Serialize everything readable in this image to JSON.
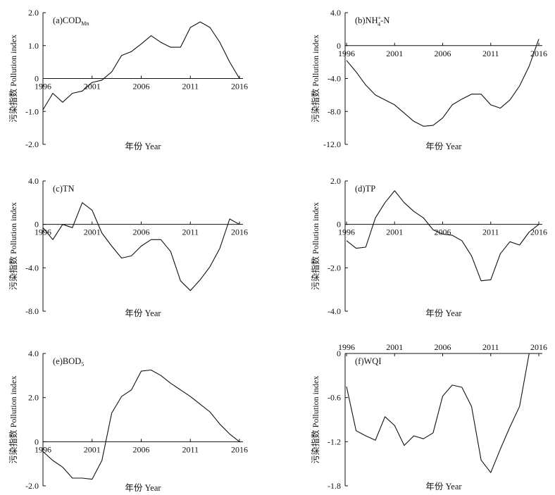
{
  "chart_data": [
    {
      "type": "line",
      "panel_label": "(a)",
      "panel_name": "COD",
      "panel_sub": "Mn",
      "xlabel": "年份 Year",
      "ylabel": "污染指数 Pollution index",
      "xlim": [
        1996,
        2016
      ],
      "ylim": [
        -2.0,
        2.0
      ],
      "yticks": [
        "2.0",
        "1.0",
        "0",
        "-1.0",
        "-2.0"
      ],
      "xticks": [
        "1996",
        "2001",
        "2006",
        "2011",
        "2016"
      ],
      "x": [
        1996,
        1997,
        1998,
        1999,
        2000,
        2001,
        2002,
        2003,
        2004,
        2005,
        2006,
        2007,
        2008,
        2009,
        2010,
        2011,
        2012,
        2013,
        2014,
        2015,
        2016
      ],
      "values": [
        -0.95,
        -0.45,
        -0.72,
        -0.45,
        -0.38,
        -0.12,
        -0.05,
        0.2,
        0.7,
        0.82,
        1.05,
        1.3,
        1.1,
        0.95,
        0.95,
        1.55,
        1.72,
        1.55,
        1.1,
        0.5,
        0.0
      ]
    },
    {
      "type": "line",
      "panel_label": "(b)",
      "panel_name": "NH",
      "panel_sup": "+",
      "panel_sub": "4",
      "panel_suffix": "-N",
      "xlabel": "年份 Year",
      "ylabel": "污染指数 Pollution index",
      "xlim": [
        1996,
        2016
      ],
      "ylim": [
        -12.0,
        4.0
      ],
      "yticks": [
        "4.0",
        "0",
        "-4.0",
        "-8.0",
        "-12.0"
      ],
      "xticks": [
        "1996",
        "2001",
        "2006",
        "2011",
        "2016"
      ],
      "x": [
        1996,
        1997,
        1998,
        1999,
        2000,
        2001,
        2002,
        2003,
        2004,
        2005,
        2006,
        2007,
        2008,
        2009,
        2010,
        2011,
        2012,
        2013,
        2014,
        2015,
        2016
      ],
      "values": [
        -1.8,
        -3.2,
        -4.8,
        -6.0,
        -6.6,
        -7.2,
        -8.2,
        -9.2,
        -9.8,
        -9.7,
        -8.8,
        -7.2,
        -6.5,
        -5.9,
        -5.9,
        -7.2,
        -7.6,
        -6.6,
        -4.9,
        -2.5,
        0.8
      ]
    },
    {
      "type": "line",
      "panel_label": "(c)",
      "panel_name": "TN",
      "xlabel": "年份 Year",
      "ylabel": "污染指数 Pollution index",
      "xlim": [
        1996,
        2016
      ],
      "ylim": [
        -8.0,
        4.0
      ],
      "yticks": [
        "4.0",
        "0",
        "-4.0",
        "-8.0"
      ],
      "xticks": [
        "1996",
        "2001",
        "2006",
        "2011",
        "2016"
      ],
      "x": [
        1996,
        1997,
        1998,
        1999,
        2000,
        2001,
        2002,
        2003,
        2004,
        2005,
        2006,
        2007,
        2008,
        2009,
        2010,
        2011,
        2012,
        2013,
        2014,
        2015,
        2016
      ],
      "values": [
        -0.3,
        -1.4,
        0.0,
        -0.3,
        2.0,
        1.3,
        -0.8,
        -2.0,
        -3.1,
        -2.9,
        -2.0,
        -1.4,
        -1.4,
        -2.5,
        -5.2,
        -6.1,
        -5.1,
        -3.9,
        -2.2,
        0.5,
        0.0
      ]
    },
    {
      "type": "line",
      "panel_label": "(d)",
      "panel_name": "TP",
      "xlabel": "年份 Year",
      "ylabel": "污染指数 Pollution index",
      "xlim": [
        1996,
        2016
      ],
      "ylim": [
        -4.0,
        2.0
      ],
      "yticks": [
        "2.0",
        "0",
        "-2.0",
        "-4.0"
      ],
      "xticks": [
        "1996",
        "2001",
        "2006",
        "2011",
        "2016"
      ],
      "x": [
        1996,
        1997,
        1998,
        1999,
        2000,
        2001,
        2002,
        2003,
        2004,
        2005,
        2006,
        2007,
        2008,
        2009,
        2010,
        2011,
        2012,
        2013,
        2014,
        2015,
        2016
      ],
      "values": [
        -0.75,
        -1.1,
        -1.05,
        0.3,
        1.0,
        1.55,
        1.0,
        0.6,
        0.3,
        -0.25,
        -0.45,
        -0.5,
        -0.75,
        -1.45,
        -2.6,
        -2.55,
        -1.35,
        -0.8,
        -0.95,
        -0.35,
        0.0
      ]
    },
    {
      "type": "line",
      "panel_label": "(e)",
      "panel_name": "BOD",
      "panel_sub": "5",
      "xlabel": "年份 Year",
      "ylabel": "污染指数 Pollution index",
      "xlim": [
        1996,
        2016
      ],
      "ylim": [
        -2.0,
        4.0
      ],
      "yticks": [
        "4.0",
        "2.0",
        "0",
        "-2.0"
      ],
      "xticks": [
        "1996",
        "2001",
        "2006",
        "2011",
        "2016"
      ],
      "x": [
        1996,
        1997,
        1998,
        1999,
        2000,
        2001,
        2002,
        2003,
        2004,
        2005,
        2006,
        2007,
        2008,
        2009,
        2010,
        2011,
        2012,
        2013,
        2014,
        2015,
        2016
      ],
      "values": [
        -0.45,
        -0.85,
        -1.15,
        -1.65,
        -1.65,
        -1.7,
        -0.85,
        1.3,
        2.05,
        2.35,
        3.2,
        3.25,
        3.0,
        2.65,
        2.35,
        2.05,
        1.7,
        1.35,
        0.8,
        0.35,
        0.0
      ]
    },
    {
      "type": "line",
      "panel_label": "(f)",
      "panel_name": "WQI",
      "xlabel": "年份 Year",
      "ylabel": "污染指数 Pollution index",
      "xlim": [
        1996,
        2016
      ],
      "ylim": [
        -1.8,
        0
      ],
      "yticks": [
        "0",
        "-0.6",
        "-1.2",
        "-1.8"
      ],
      "xticks": [
        "1996",
        "2001",
        "2006",
        "2011",
        "2016"
      ],
      "x": [
        1996,
        1997,
        1998,
        1999,
        2000,
        2001,
        2002,
        2003,
        2004,
        2005,
        2006,
        2007,
        2008,
        2009,
        2010,
        2011,
        2012,
        2013,
        2014,
        2015,
        2016
      ],
      "values": [
        -0.45,
        -1.05,
        -1.12,
        -1.18,
        -0.86,
        -0.98,
        -1.25,
        -1.12,
        -1.16,
        -1.08,
        -0.58,
        -0.43,
        -0.46,
        -0.72,
        -1.45,
        -1.62,
        -1.3,
        -1.0,
        -0.72,
        0.0,
        0.0
      ]
    }
  ]
}
